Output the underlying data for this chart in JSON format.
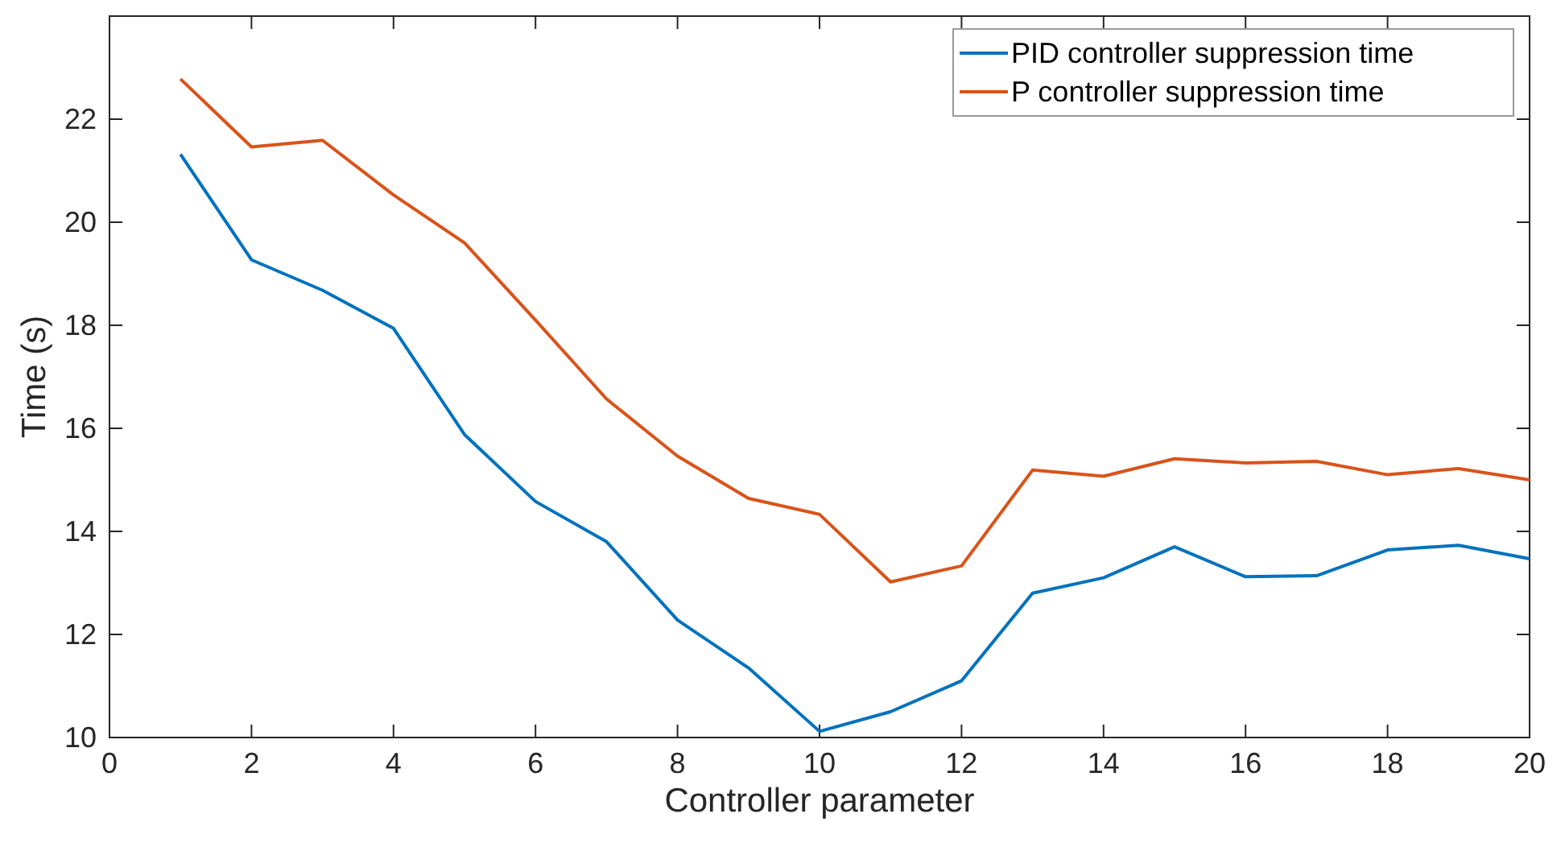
{
  "chart_data": {
    "type": "line",
    "xlabel": "Controller parameter",
    "ylabel": "Time (s)",
    "x": [
      1,
      2,
      3,
      4,
      5,
      6,
      7,
      8,
      9,
      10,
      11,
      12,
      13,
      14,
      15,
      16,
      17,
      18,
      19,
      20
    ],
    "series": [
      {
        "name": "PID controller suppression time",
        "color": "#0072bd",
        "values": [
          21.32,
          19.27,
          18.68,
          17.94,
          15.88,
          14.58,
          13.8,
          12.28,
          11.35,
          10.12,
          10.5,
          11.1,
          12.8,
          13.1,
          13.7,
          13.12,
          13.14,
          13.64,
          13.73,
          13.47
        ]
      },
      {
        "name": "P controller suppression time",
        "color": "#d95319",
        "values": [
          22.78,
          21.46,
          21.59,
          20.53,
          19.6,
          18.1,
          16.57,
          15.46,
          14.64,
          14.33,
          13.02,
          13.33,
          15.19,
          15.07,
          15.41,
          15.33,
          15.36,
          15.1,
          15.22,
          15.0
        ]
      }
    ],
    "xlim": [
      0,
      20
    ],
    "xticks": [
      0,
      2,
      4,
      6,
      8,
      10,
      12,
      14,
      16,
      18,
      20
    ],
    "ylim": [
      10,
      24
    ],
    "yticks": [
      10,
      12,
      14,
      16,
      18,
      20,
      22
    ],
    "legend": "top right",
    "grid": false,
    "marker": "none",
    "line_style": "solid"
  }
}
